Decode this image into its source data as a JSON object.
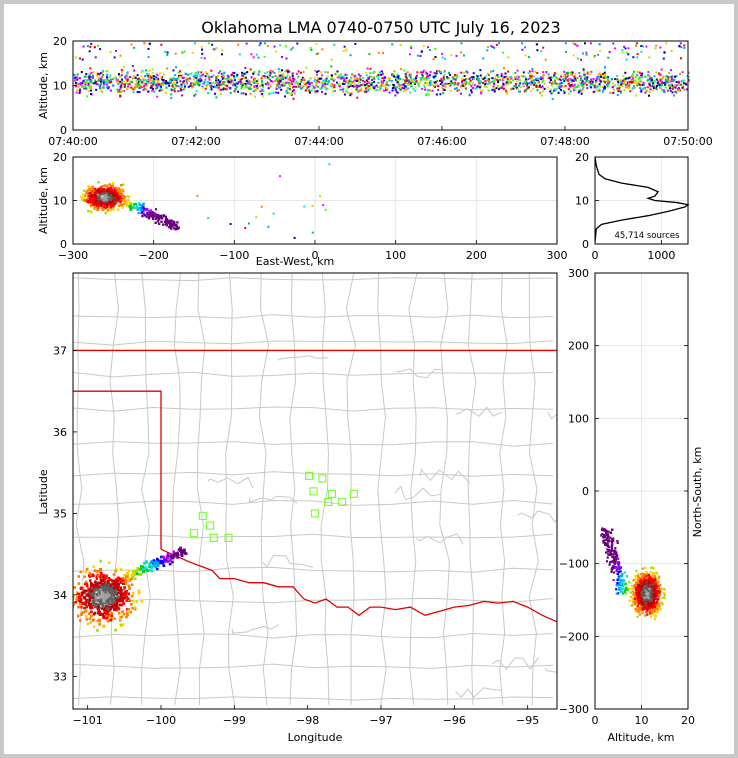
{
  "title": "Oklahoma LMA 0740-0750 UTC July 16, 2023",
  "chart_data": [
    {
      "type": "scatter",
      "panel": "time-height",
      "xlabel": "",
      "ylabel": "Altitude, km",
      "xticks": [
        "07:40:00",
        "07:42:00",
        "07:44:00",
        "07:46:00",
        "07:48:00",
        "07:50:00"
      ],
      "xlim_minutes": [
        0,
        10
      ],
      "ylim": [
        0,
        20
      ],
      "yticks": [
        "0",
        "10",
        "20"
      ],
      "altitude_range_km": [
        3,
        20
      ]
    },
    {
      "type": "scatter",
      "panel": "east-west-height",
      "xlabel": "East-West, km",
      "ylabel": "Altitude, km",
      "xlim": [
        -300,
        300
      ],
      "xticks": [
        "−300",
        "−200",
        "−100",
        "0",
        "100",
        "200",
        "300"
      ],
      "ylim": [
        0,
        20
      ],
      "yticks": [
        "0",
        "10",
        "20"
      ],
      "cluster_center_x_km": -262,
      "cluster_center_alt_km": 11
    },
    {
      "type": "line",
      "panel": "altitude-histogram",
      "xlim": [
        0,
        1400
      ],
      "xticks": [
        "0",
        "1000"
      ],
      "ylim": [
        0,
        20
      ],
      "yticks": [
        "0",
        "10",
        "20"
      ],
      "annotation": "45,714 sources",
      "profile": [
        [
          0,
          0.5
        ],
        [
          20,
          3.5
        ],
        [
          100,
          4.5
        ],
        [
          400,
          5.5
        ],
        [
          800,
          6.5
        ],
        [
          1100,
          7.5
        ],
        [
          1350,
          8.5
        ],
        [
          1400,
          9.0
        ],
        [
          1250,
          9.5
        ],
        [
          900,
          10.0
        ],
        [
          800,
          10.5
        ],
        [
          900,
          11.0
        ],
        [
          950,
          12.0
        ],
        [
          800,
          13.0
        ],
        [
          400,
          14.0
        ],
        [
          150,
          15.0
        ],
        [
          60,
          16.0
        ],
        [
          20,
          18.0
        ],
        [
          0,
          20
        ]
      ]
    },
    {
      "type": "map",
      "panel": "plan-view",
      "xlabel": "Longitude",
      "ylabel": "Latitude",
      "xlim": [
        -101.2,
        -94.6
      ],
      "ylim": [
        32.6,
        37.95
      ],
      "xticks": [
        "−101",
        "−100",
        "−99",
        "−98",
        "−97",
        "−96",
        "−95"
      ],
      "yticks": [
        "33",
        "34",
        "35",
        "36",
        "37"
      ],
      "cluster_center": [
        -100.8,
        34.0
      ],
      "stations": [
        [
          -97.98,
          35.46
        ],
        [
          -97.8,
          35.43
        ],
        [
          -97.92,
          35.27
        ],
        [
          -97.67,
          35.24
        ],
        [
          -97.37,
          35.24
        ],
        [
          -97.72,
          35.14
        ],
        [
          -97.53,
          35.14
        ],
        [
          -97.9,
          35.0
        ],
        [
          -99.43,
          34.97
        ],
        [
          -99.33,
          34.85
        ],
        [
          -99.55,
          34.76
        ],
        [
          -99.28,
          34.7
        ],
        [
          -99.08,
          34.7
        ]
      ]
    },
    {
      "type": "scatter",
      "panel": "north-south-height",
      "xlabel": "Altitude, km",
      "ylabel": "North-South, km",
      "xlim": [
        0,
        20
      ],
      "xticks": [
        "0",
        "10",
        "20"
      ],
      "ylim": [
        -300,
        300
      ],
      "yticks": [
        "−300",
        "−200",
        "−100",
        "0",
        "100",
        "200",
        "300"
      ],
      "cluster_center_y_km": -140,
      "cluster_center_alt_km": 11
    }
  ],
  "colors": {
    "state_line": "#e00000",
    "county_lines": "#c8c8c8",
    "stations": "#7dff3a",
    "hist_line": "#000000",
    "grid": "#e6e6e6"
  }
}
